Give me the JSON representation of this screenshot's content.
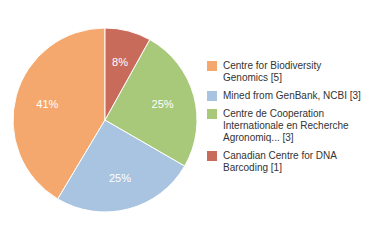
{
  "chart_data": {
    "type": "pie",
    "categories": [
      "Centre for Biodiversity\nGenomics [5]",
      "Mined from GenBank, NCBI [3]",
      "Centre de Cooperation\nInternationale en Recherche\nAgronomiq... [3]",
      "Canadian Centre for DNA\nBarcoding [1]"
    ],
    "values": [
      41,
      25,
      25,
      8
    ],
    "value_labels": [
      "41%",
      "25%",
      "25%",
      "8%"
    ],
    "colors": [
      "#F5A86E",
      "#A8C4E0",
      "#A8C87A",
      "#C96B5A"
    ],
    "data_labels": true,
    "legend": "right"
  }
}
